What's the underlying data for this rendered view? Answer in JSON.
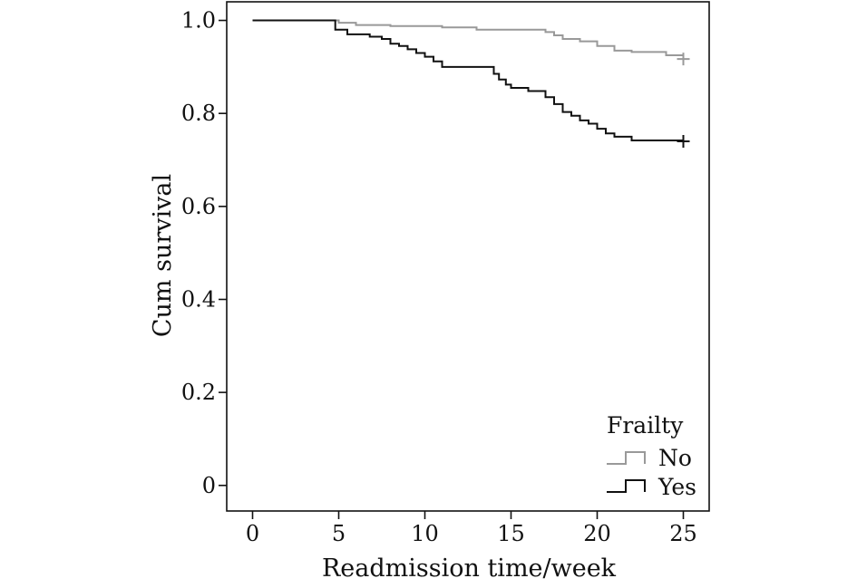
{
  "chart_data": {
    "type": "line",
    "xlabel": "Readmission time/week",
    "ylabel": "Cum survival",
    "xlim": [
      -1.5,
      26.5
    ],
    "ylim": [
      -0.055,
      1.04
    ],
    "x_ticks": [
      0,
      5,
      10,
      15,
      20,
      25
    ],
    "x_tick_labels": [
      "0",
      "5",
      "10",
      "15",
      "20",
      "25"
    ],
    "y_ticks": [
      0,
      0.2,
      0.4,
      0.6,
      0.8,
      1.0
    ],
    "y_tick_labels": [
      "0",
      "0.2",
      "0.4",
      "0.6",
      "0.8",
      "1.0"
    ],
    "grid": false,
    "legend": {
      "title": "Frailty",
      "position": "bottom-right"
    },
    "series": [
      {
        "name": "No",
        "color": "#999999",
        "step": true,
        "x": [
          0,
          5,
          6,
          7,
          8,
          11,
          13,
          17,
          17.5,
          18,
          19,
          20,
          21,
          22,
          24,
          25
        ],
        "y": [
          1.0,
          0.995,
          0.99,
          0.99,
          0.988,
          0.985,
          0.98,
          0.975,
          0.968,
          0.96,
          0.955,
          0.945,
          0.935,
          0.932,
          0.925,
          0.917
        ],
        "censor": [
          [
            25,
            0.917
          ]
        ]
      },
      {
        "name": "Yes",
        "color": "#111111",
        "step": true,
        "x": [
          0,
          4.8,
          5.5,
          6.8,
          7.5,
          8,
          8.5,
          9,
          9.5,
          10,
          10.5,
          11,
          14,
          14.3,
          14.7,
          15,
          16,
          17,
          17.5,
          18,
          18.5,
          19,
          19.5,
          20,
          20.5,
          21,
          22,
          25
        ],
        "y": [
          1.0,
          0.98,
          0.97,
          0.965,
          0.96,
          0.95,
          0.945,
          0.938,
          0.93,
          0.922,
          0.912,
          0.9,
          0.885,
          0.873,
          0.862,
          0.855,
          0.848,
          0.835,
          0.82,
          0.803,
          0.795,
          0.785,
          0.778,
          0.767,
          0.757,
          0.75,
          0.742,
          0.74
        ],
        "censor": [
          [
            25,
            0.74
          ]
        ]
      }
    ]
  }
}
